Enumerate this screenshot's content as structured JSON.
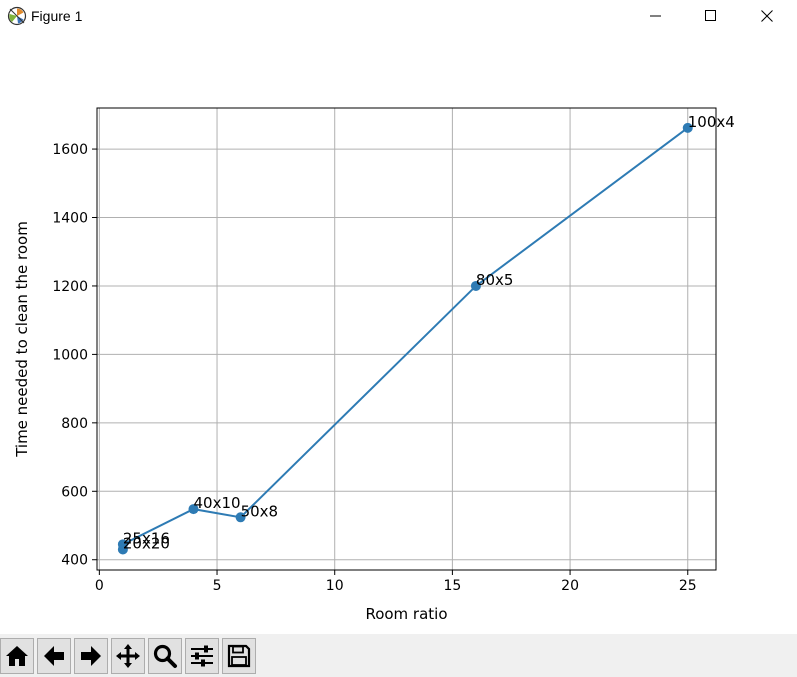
{
  "window": {
    "title": "Figure 1",
    "icon": "matplotlib-icon",
    "controls": [
      "minimize-icon",
      "maximize-icon",
      "close-icon"
    ]
  },
  "toolbar": {
    "buttons": [
      {
        "name": "home-button",
        "icon": "home-icon"
      },
      {
        "name": "back-button",
        "icon": "arrow-left-icon"
      },
      {
        "name": "forward-button",
        "icon": "arrow-right-icon"
      },
      {
        "name": "pan-button",
        "icon": "move-icon"
      },
      {
        "name": "zoom-button",
        "icon": "magnifier-icon"
      },
      {
        "name": "subplots-button",
        "icon": "sliders-icon"
      },
      {
        "name": "save-button",
        "icon": "floppy-disk-icon"
      }
    ]
  },
  "chart_data": {
    "type": "line",
    "title": "",
    "xlabel": "Room ratio",
    "ylabel": "Time needed to clean the room",
    "xlim": [
      -0.1,
      26.2
    ],
    "ylim": [
      370,
      1720
    ],
    "xticks": [
      0,
      5,
      10,
      15,
      20,
      25
    ],
    "yticks": [
      400,
      600,
      800,
      1000,
      1200,
      1400,
      1600
    ],
    "grid": true,
    "color": "#2e7bb4",
    "series": [
      {
        "x": [
          1,
          1,
          4,
          6,
          16,
          25
        ],
        "y": [
          430,
          445,
          548,
          524,
          1200,
          1662
        ],
        "labels": [
          "20x20",
          "25x16",
          "40x10",
          "50x8",
          "80x5",
          "100x4"
        ]
      }
    ]
  }
}
